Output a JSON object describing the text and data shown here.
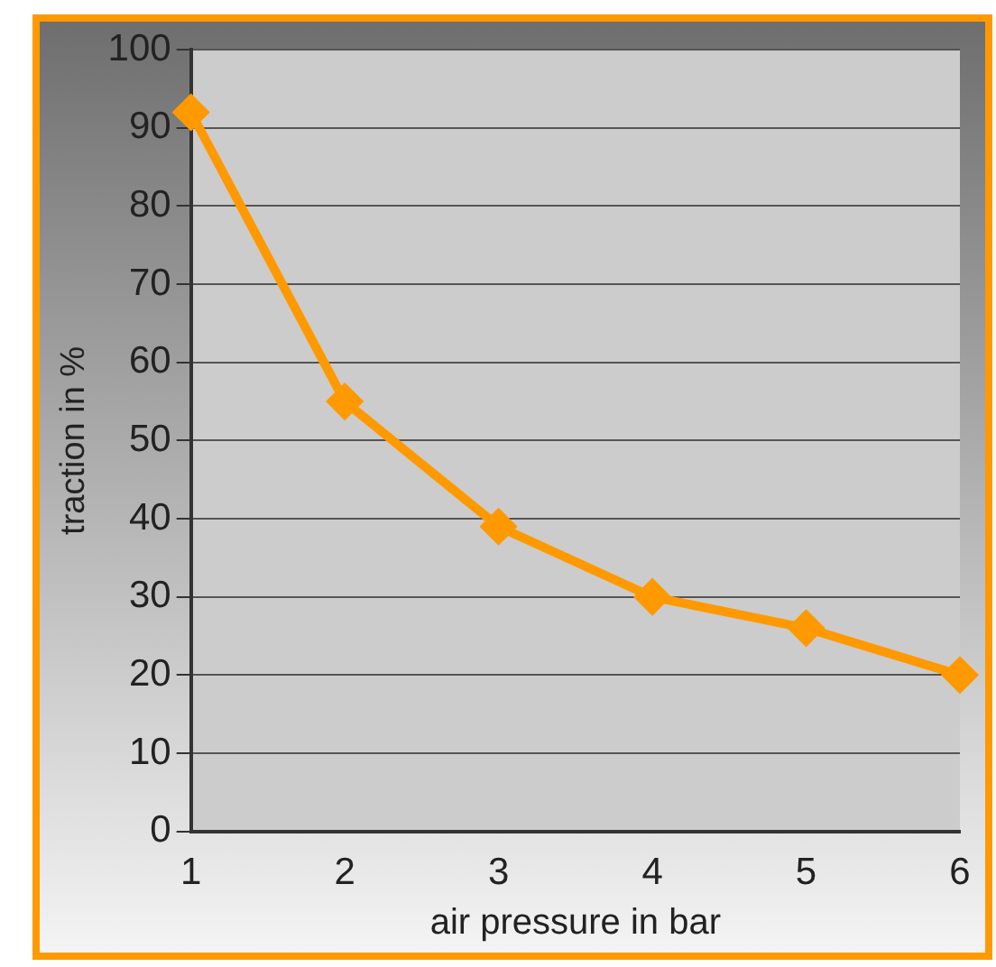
{
  "chart_data": {
    "type": "line",
    "xlabel": "air pressure in bar",
    "ylabel": "traction in %",
    "categories": [
      "1",
      "2",
      "3",
      "4",
      "5",
      "6"
    ],
    "series": [
      {
        "color": "#ff9900",
        "values": [
          92,
          55,
          39,
          30,
          26,
          20
        ]
      }
    ],
    "ylim": [
      0,
      100
    ],
    "yticks": [
      0,
      10,
      20,
      30,
      40,
      50,
      60,
      70,
      80,
      90,
      100
    ],
    "grid": "y",
    "marker": "diamond",
    "line_style": "solid",
    "legend": false
  }
}
